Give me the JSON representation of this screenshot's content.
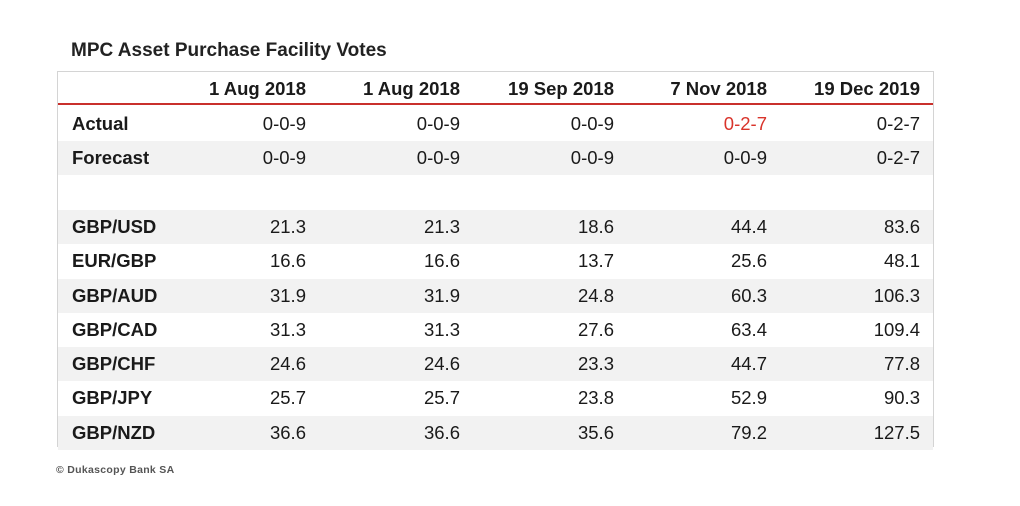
{
  "title": "MPC Asset Purchase Facility Votes",
  "footer": "© Dukascopy Bank SA",
  "colors": {
    "header_rule": "#c9302c",
    "highlight_text": "#d9342b",
    "stripe": "#f2f2f2"
  },
  "chart_data": {
    "type": "table",
    "columns": [
      "",
      "1 Aug 2018",
      "1 Aug 2018",
      "19 Sep 2018",
      "7 Nov 2018",
      "19 Dec 2019"
    ],
    "rows": [
      {
        "label": "Actual",
        "values": [
          "0-0-9",
          "0-0-9",
          "0-0-9",
          "0-2-7",
          "0-2-7"
        ],
        "highlight": [
          false,
          false,
          false,
          true,
          false
        ]
      },
      {
        "label": "Forecast",
        "values": [
          "0-0-9",
          "0-0-9",
          "0-0-9",
          "0-0-9",
          "0-2-7"
        ],
        "highlight": [
          false,
          false,
          false,
          false,
          false
        ]
      },
      {
        "label": "",
        "values": [
          "",
          "",
          "",
          "",
          ""
        ],
        "highlight": [
          false,
          false,
          false,
          false,
          false
        ]
      },
      {
        "label": "GBP/USD",
        "values": [
          "21.3",
          "21.3",
          "18.6",
          "44.4",
          "83.6"
        ],
        "highlight": [
          false,
          false,
          false,
          false,
          false
        ]
      },
      {
        "label": "EUR/GBP",
        "values": [
          "16.6",
          "16.6",
          "13.7",
          "25.6",
          "48.1"
        ],
        "highlight": [
          false,
          false,
          false,
          false,
          false
        ]
      },
      {
        "label": "GBP/AUD",
        "values": [
          "31.9",
          "31.9",
          "24.8",
          "60.3",
          "106.3"
        ],
        "highlight": [
          false,
          false,
          false,
          false,
          false
        ]
      },
      {
        "label": "GBP/CAD",
        "values": [
          "31.3",
          "31.3",
          "27.6",
          "63.4",
          "109.4"
        ],
        "highlight": [
          false,
          false,
          false,
          false,
          false
        ]
      },
      {
        "label": "GBP/CHF",
        "values": [
          "24.6",
          "24.6",
          "23.3",
          "44.7",
          "77.8"
        ],
        "highlight": [
          false,
          false,
          false,
          false,
          false
        ]
      },
      {
        "label": "GBP/JPY",
        "values": [
          "25.7",
          "25.7",
          "23.8",
          "52.9",
          "90.3"
        ],
        "highlight": [
          false,
          false,
          false,
          false,
          false
        ]
      },
      {
        "label": "GBP/NZD",
        "values": [
          "36.6",
          "36.6",
          "35.6",
          "79.2",
          "127.5"
        ],
        "highlight": [
          false,
          false,
          false,
          false,
          false
        ]
      }
    ]
  }
}
